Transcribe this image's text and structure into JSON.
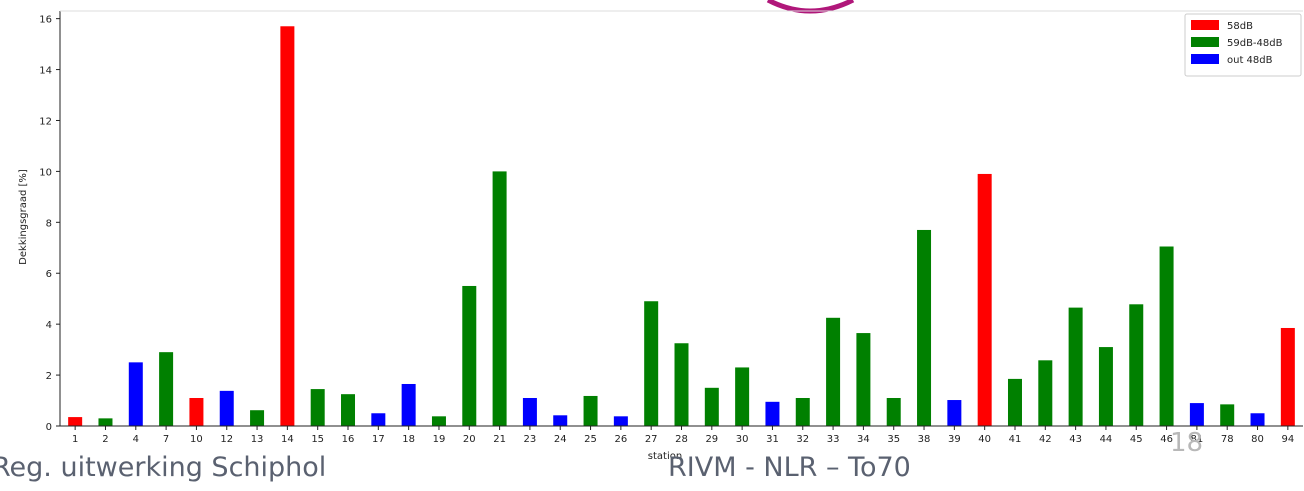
{
  "chart_data": {
    "type": "bar",
    "xlabel": "station",
    "ylabel": "Dekkingsgraad [%]",
    "ylim": [
      0,
      16.3
    ],
    "yticks": [
      0,
      2,
      4,
      6,
      8,
      10,
      12,
      14,
      16
    ],
    "legend_position": "top-right",
    "series": [
      {
        "name": "58dB",
        "color": "#ff0000"
      },
      {
        "name": "59dB-48dB",
        "color": "#008000"
      },
      {
        "name": "out 48dB",
        "color": "#0000ff"
      }
    ],
    "categories": [
      "1",
      "2",
      "4",
      "7",
      "10",
      "12",
      "13",
      "14",
      "15",
      "16",
      "17",
      "18",
      "19",
      "20",
      "21",
      "23",
      "24",
      "25",
      "26",
      "27",
      "28",
      "29",
      "30",
      "31",
      "32",
      "33",
      "34",
      "35",
      "38",
      "39",
      "40",
      "41",
      "42",
      "43",
      "44",
      "45",
      "46",
      "81",
      "78",
      "80",
      "94"
    ],
    "values": [
      0.35,
      0.3,
      2.5,
      2.9,
      1.1,
      1.38,
      0.62,
      15.7,
      1.45,
      1.25,
      0.5,
      1.65,
      0.38,
      5.5,
      10.0,
      1.1,
      0.42,
      1.18,
      0.38,
      4.9,
      3.25,
      1.5,
      2.3,
      0.95,
      1.1,
      4.25,
      3.65,
      1.1,
      7.7,
      1.02,
      9.9,
      1.85,
      2.58,
      4.65,
      3.1,
      4.78,
      7.05,
      0.9,
      0.85,
      0.5,
      3.85
    ],
    "groups": [
      0,
      1,
      2,
      1,
      0,
      2,
      1,
      0,
      1,
      1,
      2,
      2,
      1,
      1,
      1,
      2,
      2,
      1,
      2,
      1,
      1,
      1,
      1,
      2,
      1,
      1,
      1,
      1,
      1,
      2,
      0,
      1,
      1,
      1,
      1,
      1,
      1,
      2,
      1,
      2,
      0
    ]
  },
  "footer": {
    "left": "Reg. uitwerking Schiphol",
    "center": "RIVM - NLR – To70",
    "slide_number": "18"
  }
}
